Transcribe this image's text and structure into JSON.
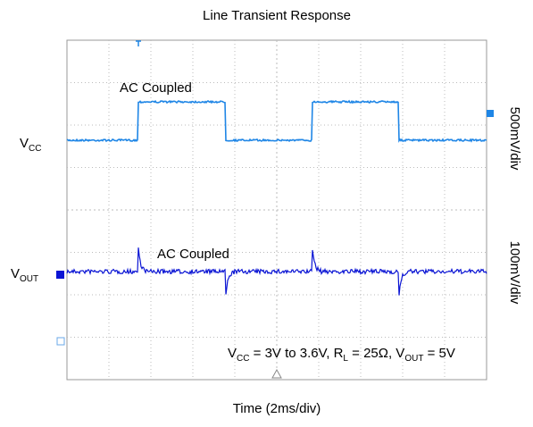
{
  "chart_data": {
    "type": "scope",
    "title": "Line Transient Response",
    "xlabel": "Time (2ms/div)",
    "channels": [
      {
        "name": [
          "V",
          "CC"
        ],
        "scale": "500mV/div",
        "coupling": "AC Coupled",
        "color": "#1f86e6"
      },
      {
        "name": [
          "V",
          "OUT"
        ],
        "scale": "100mV/div",
        "coupling": "AC Coupled",
        "color": "#0a14d4"
      }
    ],
    "note": [
      "V",
      "CC",
      " = 3V to 3.6V, R",
      "L",
      " = 25Ω, V",
      "OUT",
      " = 5V"
    ],
    "grid": true
  }
}
